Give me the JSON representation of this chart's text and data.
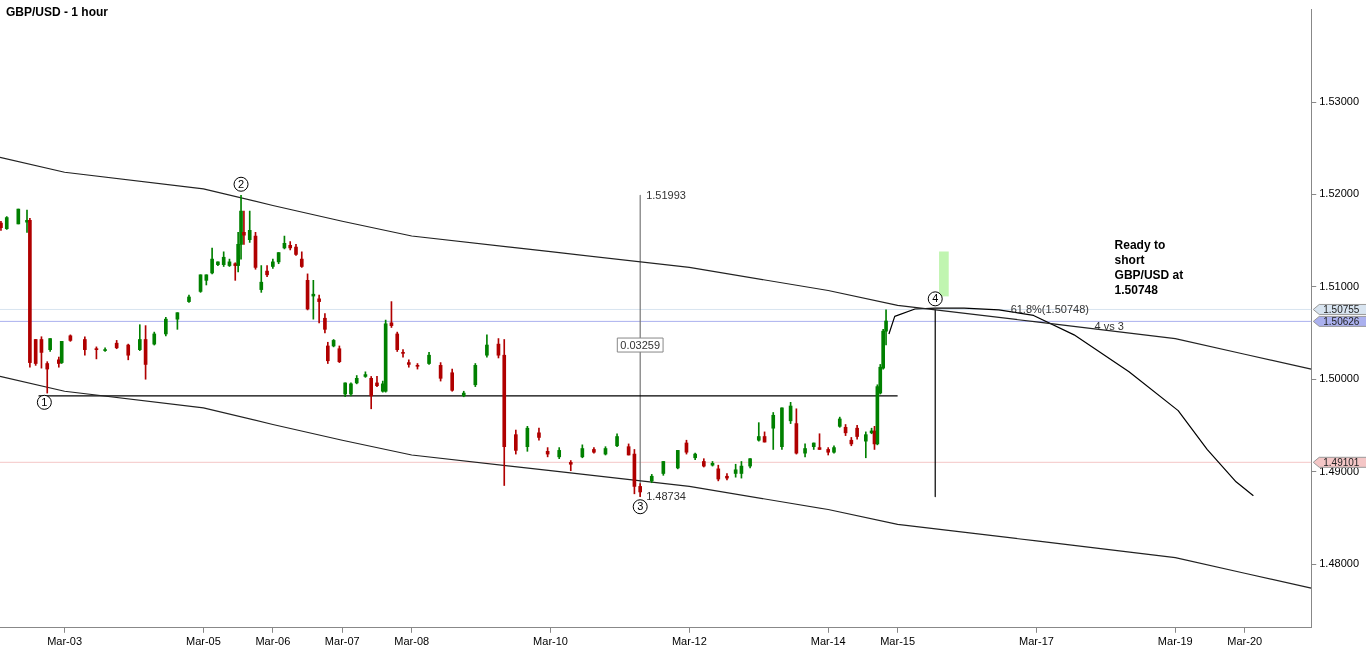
{
  "chart_data": {
    "type": "candlestick",
    "title": "GBP/USD - 1 hour",
    "x": [
      "--03-02T02:00",
      "--03-02T04:00",
      "--03-02T08:00",
      "--03-02T11:00",
      "--03-02T12:00",
      "--03-02T14:00",
      "--03-02T16:00",
      "--03-02T18:00",
      "--03-02T19:00",
      "--03-02T22:00",
      "--03-02T23:00",
      "--03-03T02:00",
      "--03-03T07:00",
      "--03-03T11:00",
      "--03-03T14:00",
      "--03-03T18:00",
      "--03-03T22:00",
      "--03-04T02:00",
      "--03-04T04:00",
      "--03-04T07:00",
      "--03-04T11:00",
      "--03-04T15:00",
      "--03-04T19:00",
      "--03-04T23:00",
      "--03-05T01:00",
      "--03-05T03:00",
      "--03-05T05:00",
      "--03-05T07:00",
      "--03-05T09:00",
      "--03-05T11:00",
      "--03-05T12:00",
      "--03-05T13:00",
      "--03-05T14:00",
      "--03-05T16:00",
      "--03-05T18:00",
      "--03-05T20:00",
      "--03-05T22:00",
      "--03-06T00:00",
      "--03-06T02:00",
      "--03-06T04:00",
      "--03-06T06:00",
      "--03-06T08:00",
      "--03-06T10:00",
      "--03-06T12:00",
      "--03-06T14:00",
      "--03-06T16:00",
      "--03-06T18:00",
      "--03-06T19:00",
      "--03-06T21:00",
      "--03-06T23:00",
      "--03-07T01:00",
      "--03-07T03:00",
      "--03-07T05:00",
      "--03-07T08:00",
      "--03-07T10:00",
      "--03-07T12:00",
      "--03-07T14:00",
      "--03-07T15:00",
      "--03-07T17:00",
      "--03-07T19:00",
      "--03-07T21:00",
      "--03-07T23:00",
      "--03-08T02:00",
      "--03-08T06:00",
      "--03-08T10:00",
      "--03-08T14:00",
      "--03-08T18:00",
      "--03-08T22:00",
      "--03-09T02:00",
      "--03-09T06:00",
      "--03-09T08:00",
      "--03-09T12:00",
      "--03-09T16:00",
      "--03-09T20:00",
      "--03-09T23:00",
      "--03-10T03:00",
      "--03-10T07:00",
      "--03-10T11:00",
      "--03-10T15:00",
      "--03-10T19:00",
      "--03-10T23:00",
      "--03-11T03:00",
      "--03-11T05:00",
      "--03-11T07:00",
      "--03-11T11:00",
      "--03-11T15:00",
      "--03-11T20:00",
      "--03-11T23:00",
      "--03-12T02:00",
      "--03-12T05:00",
      "--03-12T08:00",
      "--03-12T10:00",
      "--03-12T13:00",
      "--03-12T16:00",
      "--03-12T18:00",
      "--03-12T21:00",
      "--03-13T00:00",
      "--03-13T02:00",
      "--03-13T05:00",
      "--03-13T08:00",
      "--03-13T11:00",
      "--03-13T13:00",
      "--03-13T16:00",
      "--03-13T19:00",
      "--03-13T21:00",
      "--03-14T00:00",
      "--03-14T02:00",
      "--03-14T04:00",
      "--03-14T06:00",
      "--03-14T08:00",
      "--03-14T10:00",
      "--03-14T13:00",
      "--03-14T15:00",
      "--03-14T16:00",
      "--03-14T17:00",
      "--03-14T18:00",
      "--03-14T19:00",
      "--03-14T20:00"
    ],
    "ohlc": [
      [
        1.5169,
        1.5171,
        1.5161,
        1.5164
      ],
      [
        1.5163,
        1.5176,
        1.5162,
        1.5175
      ],
      [
        1.5168,
        1.5184,
        1.5168,
        1.5184
      ],
      [
        1.517,
        1.5183,
        1.5159,
        1.5172
      ],
      [
        1.5172,
        1.5174,
        1.5013,
        1.5018
      ],
      [
        1.5043,
        1.5043,
        1.5015,
        1.5017
      ],
      [
        1.5043,
        1.5046,
        1.5012,
        1.5029
      ],
      [
        1.5017,
        1.5019,
        1.4985,
        1.5011
      ],
      [
        1.5032,
        1.5044,
        1.503,
        1.5044
      ],
      [
        1.5021,
        1.5024,
        1.5013,
        1.5017
      ],
      [
        1.5018,
        1.5041,
        1.5017,
        1.5041
      ],
      [
        1.5047,
        1.5048,
        1.5041,
        1.5042
      ],
      [
        1.5043,
        1.5046,
        1.5026,
        1.5032
      ],
      [
        1.5033,
        1.5035,
        1.5022,
        1.5032
      ],
      [
        1.5031,
        1.5034,
        1.503,
        1.5032
      ],
      [
        1.5039,
        1.5042,
        1.5033,
        1.5034
      ],
      [
        1.5037,
        1.5038,
        1.5021,
        1.5026
      ],
      [
        1.5032,
        1.5059,
        1.5031,
        1.5043
      ],
      [
        1.5043,
        1.5058,
        1.5,
        1.5016
      ],
      [
        1.5038,
        1.5051,
        1.5037,
        1.5049
      ],
      [
        1.5049,
        1.5067,
        1.5047,
        1.5065
      ],
      [
        1.5065,
        1.5072,
        1.5054,
        1.5072
      ],
      [
        1.5084,
        1.5091,
        1.5083,
        1.5089
      ],
      [
        1.5095,
        1.5113,
        1.5094,
        1.5113
      ],
      [
        1.5107,
        1.5113,
        1.5102,
        1.5113
      ],
      [
        1.5115,
        1.5142,
        1.5114,
        1.513
      ],
      [
        1.5124,
        1.5127,
        1.5123,
        1.5127
      ],
      [
        1.5124,
        1.5138,
        1.5122,
        1.5132
      ],
      [
        1.5123,
        1.513,
        1.5122,
        1.5127
      ],
      [
        1.5125,
        1.5126,
        1.5107,
        1.5123
      ],
      [
        1.5123,
        1.5159,
        1.5116,
        1.5146
      ],
      [
        1.5146,
        1.5199,
        1.513,
        1.5182
      ],
      [
        1.5159,
        1.5182,
        1.5146,
        1.5156
      ],
      [
        1.5151,
        1.5182,
        1.5148,
        1.5161
      ],
      [
        1.5155,
        1.5159,
        1.5119,
        1.5121
      ],
      [
        1.5097,
        1.5123,
        1.5094,
        1.5105
      ],
      [
        1.5117,
        1.5123,
        1.5111,
        1.5113
      ],
      [
        1.5122,
        1.513,
        1.512,
        1.5127
      ],
      [
        1.5127,
        1.5137,
        1.5125,
        1.5137
      ],
      [
        1.5142,
        1.5155,
        1.5141,
        1.5147
      ],
      [
        1.5145,
        1.5149,
        1.514,
        1.5142
      ],
      [
        1.5143,
        1.5146,
        1.5134,
        1.5135
      ],
      [
        1.513,
        1.5138,
        1.5121,
        1.5122
      ],
      [
        1.5107,
        1.5114,
        1.5075,
        1.5076
      ],
      [
        1.509,
        1.5107,
        1.5065,
        1.5092
      ],
      [
        1.5087,
        1.5091,
        1.5061,
        1.5084
      ],
      [
        1.5066,
        1.5071,
        1.505,
        1.5054
      ],
      [
        1.5036,
        1.504,
        1.5017,
        1.502
      ],
      [
        1.5036,
        1.5043,
        1.5035,
        1.5042
      ],
      [
        1.5033,
        1.5036,
        1.5018,
        1.5019
      ],
      [
        1.4984,
        1.4996,
        1.4981,
        1.4996
      ],
      [
        1.4984,
        1.4996,
        1.4982,
        1.4995
      ],
      [
        1.4996,
        1.5004,
        1.4995,
        1.5001
      ],
      [
        1.5003,
        1.5008,
        1.5002,
        1.5005
      ],
      [
        1.5001,
        1.5003,
        1.4968,
        1.4982
      ],
      [
        1.4996,
        1.5003,
        1.4992,
        1.4993
      ],
      [
        1.4987,
        1.4998,
        1.4986,
        1.4995
      ],
      [
        1.4987,
        1.5064,
        1.4986,
        1.506
      ],
      [
        1.5061,
        1.5084,
        1.5056,
        1.5058
      ],
      [
        1.5049,
        1.5051,
        1.503,
        1.5032
      ],
      [
        1.5029,
        1.5032,
        1.5024,
        1.5028
      ],
      [
        1.5018,
        1.5021,
        1.5013,
        1.5016
      ],
      [
        1.5015,
        1.5017,
        1.5011,
        1.5014
      ],
      [
        1.5017,
        1.5029,
        1.5016,
        1.5026
      ],
      [
        1.5015,
        1.5018,
        1.4998,
        1.5001
      ],
      [
        1.5007,
        1.5011,
        1.4987,
        1.4988
      ],
      [
        1.4982,
        1.4987,
        1.4981,
        1.4985
      ],
      [
        1.4994,
        1.5017,
        1.4992,
        1.5015
      ],
      [
        1.5026,
        1.5048,
        1.5024,
        1.5037
      ],
      [
        1.5038,
        1.5044,
        1.5023,
        1.5026
      ],
      [
        1.5026,
        1.5043,
        1.4885,
        1.4927
      ],
      [
        1.494,
        1.4945,
        1.4919,
        1.4923
      ],
      [
        1.4927,
        1.4949,
        1.4922,
        1.4947
      ],
      [
        1.4942,
        1.4947,
        1.4934,
        1.4937
      ],
      [
        1.4922,
        1.4926,
        1.4916,
        1.4919
      ],
      [
        1.4916,
        1.4926,
        1.4914,
        1.4923
      ],
      [
        1.491,
        1.4912,
        1.4901,
        1.4908
      ],
      [
        1.4916,
        1.4929,
        1.4915,
        1.4925
      ],
      [
        1.4924,
        1.4926,
        1.492,
        1.4921
      ],
      [
        1.4919,
        1.4927,
        1.4918,
        1.4925
      ],
      [
        1.4928,
        1.4941,
        1.4927,
        1.4938
      ],
      [
        1.4927,
        1.493,
        1.4918,
        1.4918
      ],
      [
        1.4919,
        1.4924,
        1.4876,
        1.4884
      ],
      [
        1.4884,
        1.4887,
        1.4873,
        1.4878
      ],
      [
        1.489,
        1.4897,
        1.4888,
        1.4895
      ],
      [
        1.4898,
        1.4911,
        1.4896,
        1.4911
      ],
      [
        1.4904,
        1.4923,
        1.4903,
        1.4923
      ],
      [
        1.4931,
        1.4934,
        1.4919,
        1.4921
      ],
      [
        1.4915,
        1.492,
        1.4913,
        1.4919
      ],
      [
        1.4911,
        1.4914,
        1.4905,
        1.4906
      ],
      [
        1.4907,
        1.4911,
        1.4906,
        1.4909
      ],
      [
        1.4903,
        1.4907,
        1.489,
        1.4892
      ],
      [
        1.4895,
        1.4898,
        1.4891,
        1.4893
      ],
      [
        1.4898,
        1.4908,
        1.4894,
        1.4902
      ],
      [
        1.4898,
        1.4911,
        1.4893,
        1.4906
      ],
      [
        1.4906,
        1.4914,
        1.4904,
        1.4914
      ],
      [
        1.4934,
        1.4953,
        1.4933,
        1.4938
      ],
      [
        1.4938,
        1.4943,
        1.4932,
        1.4932
      ],
      [
        1.4947,
        1.4964,
        1.4924,
        1.4961
      ],
      [
        1.4927,
        1.4969,
        1.4924,
        1.4969
      ],
      [
        1.4955,
        1.4975,
        1.4952,
        1.4971
      ],
      [
        1.4952,
        1.4968,
        1.4919,
        1.492
      ],
      [
        1.492,
        1.493,
        1.4916,
        1.4925
      ],
      [
        1.4927,
        1.4931,
        1.4924,
        1.4931
      ],
      [
        1.4926,
        1.4941,
        1.4924,
        1.4924
      ],
      [
        1.4924,
        1.4926,
        1.4918,
        1.4921
      ],
      [
        1.4921,
        1.4928,
        1.492,
        1.4926
      ],
      [
        1.4949,
        1.4959,
        1.4948,
        1.4957
      ],
      [
        1.4948,
        1.4951,
        1.4939,
        1.4942
      ],
      [
        1.4934,
        1.4937,
        1.4928,
        1.493
      ],
      [
        1.4947,
        1.495,
        1.4935,
        1.4938
      ],
      [
        1.4933,
        1.4943,
        1.4915,
        1.494
      ],
      [
        1.4942,
        1.4947,
        1.4941,
        1.4944
      ],
      [
        1.4944,
        1.4949,
        1.4924,
        1.493
      ],
      [
        1.493,
        1.4994,
        1.4929,
        1.4992
      ],
      [
        1.4985,
        1.5016,
        1.4984,
        1.5013
      ],
      [
        1.5012,
        1.5054,
        1.5011,
        1.5052
      ],
      [
        1.5052,
        1.5075,
        1.5037,
        1.5063
      ]
    ],
    "series": [
      {
        "type": "line",
        "color": "#222222",
        "x": [
          "--03-02T01:40",
          "--03-03",
          "--03-05",
          "--03-06",
          "--03-07",
          "--03-08",
          "--03-10",
          "--03-12",
          "--03-14",
          "--03-15",
          "--03-17",
          "--03-19",
          "--03-20",
          "--03-20T23:00"
        ],
        "values": [
          1.524,
          1.5224,
          1.5206,
          1.5188,
          1.5171,
          1.5155,
          1.5138,
          1.5121,
          1.5096,
          1.508,
          1.5062,
          1.5044,
          1.5027,
          1.5011
        ]
      },
      {
        "type": "line",
        "color": "#222222",
        "x": [
          "--03-02T01:40",
          "--03-03",
          "--03-05",
          "--03-06",
          "--03-07",
          "--03-08",
          "--03-10",
          "--03-12",
          "--03-14",
          "--03-15",
          "--03-17",
          "--03-19",
          "--03-20",
          "--03-20T23:00"
        ],
        "values": [
          1.5003,
          1.4987,
          1.4969,
          1.4951,
          1.4934,
          1.4918,
          1.4901,
          1.4884,
          1.4859,
          1.4843,
          1.4825,
          1.4807,
          1.479,
          1.4774
        ]
      },
      {
        "type": "line",
        "color": "#000000",
        "x": [
          "--03-02T15:00",
          "--03-15"
        ],
        "values": [
          1.4982,
          1.4982
        ]
      },
      {
        "type": "line",
        "color": "#777777",
        "x": [
          "--03-11T07:00",
          "--03-11T07:00"
        ],
        "values": [
          1.5199,
          1.4873
        ]
      },
      {
        "type": "line",
        "color": "#000000",
        "x": [
          "--03-15T13:00",
          "--03-15T13:00"
        ],
        "values": [
          1.5075,
          1.4873
        ]
      },
      {
        "type": "line",
        "color": "#000000",
        "x": [
          "--03-14T21:00",
          "--03-14T23:00",
          "--03-15T06:00",
          "--03-15T13:00",
          "--03-15T23:00",
          "--03-16T11:00",
          "--03-16T23:00",
          "--03-17T13:00",
          "--03-18T08:00",
          "--03-19T01:00",
          "--03-19T11:00",
          "--03-19T21:00",
          "--03-20T03:00"
        ],
        "values": [
          1.5049,
          1.5068,
          1.5076,
          1.5077,
          1.5077,
          1.5075,
          1.5069,
          1.5048,
          1.5008,
          1.4966,
          1.4924,
          1.4889,
          1.4874
        ]
      },
      {
        "type": "bar",
        "color": "#c0f5b0",
        "x": [
          "--03-15T16:00"
        ],
        "base": [
          1.509
        ],
        "values": [
          0.0048
        ]
      }
    ],
    "ref_lines": [
      {
        "axis": "y",
        "value": 1.50755,
        "label": "1.50755",
        "color": "#d8e4f0"
      },
      {
        "axis": "y",
        "value": 1.50626,
        "label": "1.50626",
        "color": "#aab0ee"
      },
      {
        "axis": "y",
        "value": 1.49101,
        "label": "1.49101",
        "color": "#f4c6c6"
      }
    ],
    "annotations": [
      {
        "text": "1",
        "x": "--03-02T17:00",
        "y": 1.4975
      },
      {
        "text": "2",
        "x": "--03-05T13:00",
        "y": 1.5211
      },
      {
        "text": "3",
        "x": "--03-11T07:00",
        "y": 1.4862
      },
      {
        "text": "4",
        "x": "--03-15T13:00",
        "y": 1.5087
      },
      {
        "text": "1.51993",
        "x": "--03-11T07:00",
        "y": 1.5199
      },
      {
        "text": "1.48734",
        "x": "--03-11T07:00",
        "y": 1.4873
      },
      {
        "text": "0.03259",
        "x": "--03-11T07:00",
        "y": 1.5037
      },
      {
        "text": "61.8%(1.50748)",
        "x": "--03-16T13:00",
        "y": 1.5075
      },
      {
        "text": "4 vs 3",
        "x": "--03-17T18:00",
        "y": 1.5057
      },
      "Ready to short GBP/USD at 1.50748"
    ],
    "xlim": [
      "--03-02T01:40",
      "--03-20T23:00"
    ],
    "ylim": [
      1.4731,
      1.54
    ],
    "xticks": [
      {
        "value": "--03-03",
        "label": "Mar-03"
      },
      {
        "value": "--03-05",
        "label": "Mar-05"
      },
      {
        "value": "--03-06",
        "label": "Mar-06"
      },
      {
        "value": "--03-07",
        "label": "Mar-07"
      },
      {
        "value": "--03-08",
        "label": "Mar-08"
      },
      {
        "value": "--03-10",
        "label": "Mar-10"
      },
      {
        "value": "--03-12",
        "label": "Mar-12"
      },
      {
        "value": "--03-14",
        "label": "Mar-14"
      },
      {
        "value": "--03-15",
        "label": "Mar-15"
      },
      {
        "value": "--03-17",
        "label": "Mar-17"
      },
      {
        "value": "--03-19",
        "label": "Mar-19"
      },
      {
        "value": "--03-20",
        "label": "Mar-20"
      }
    ],
    "yticks": [
      {
        "value": 1.48,
        "label": "1.48000"
      },
      {
        "value": 1.49,
        "label": "1.49000"
      },
      {
        "value": 1.5,
        "label": "1.50000"
      },
      {
        "value": 1.51,
        "label": "1.51000"
      },
      {
        "value": 1.52,
        "label": "1.52000"
      },
      {
        "value": 1.53,
        "label": "1.53000"
      }
    ],
    "grid": false,
    "legend": false
  }
}
